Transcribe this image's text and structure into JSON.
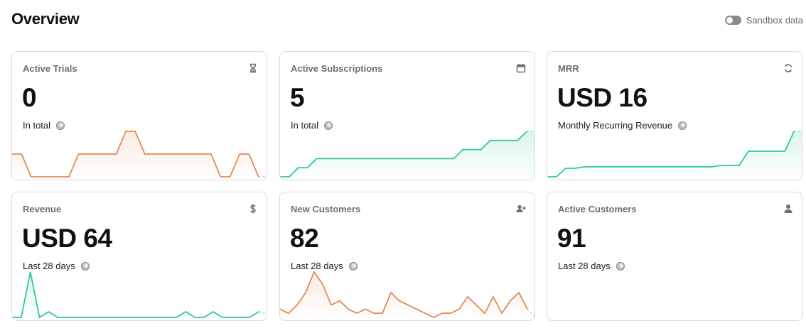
{
  "page": {
    "title": "Overview"
  },
  "sandbox": {
    "label": "Sandbox data",
    "enabled": false
  },
  "colors": {
    "orange": "#e08a5a",
    "green": "#2ecc87"
  },
  "cards": [
    {
      "title": "Active Trials",
      "icon": "hourglass-icon",
      "value": "0",
      "subtitle": "In total",
      "trend_color": "orange",
      "trend": [
        1,
        1,
        0,
        0,
        0,
        0,
        0,
        1,
        1,
        1,
        1,
        1,
        2,
        2,
        1,
        1,
        1,
        1,
        1,
        1,
        1,
        1,
        0,
        0,
        1,
        1,
        0,
        0
      ]
    },
    {
      "title": "Active Subscriptions",
      "icon": "calendar-icon",
      "value": "5",
      "subtitle": "In total",
      "trend_color": "green",
      "trend": [
        0,
        0,
        1,
        1,
        2,
        2,
        2,
        2,
        2,
        2,
        2,
        2,
        2,
        2,
        2,
        2,
        2,
        2,
        2,
        2,
        3,
        3,
        3,
        4,
        4,
        4,
        4,
        5,
        5
      ]
    },
    {
      "title": "MRR",
      "icon": "refresh-icon",
      "value": "USD 16",
      "subtitle": "Monthly Recurring Revenue",
      "trend_color": "green",
      "trend": [
        0,
        0,
        3,
        3,
        3.5,
        3.5,
        3.5,
        3.5,
        3.5,
        3.5,
        3.5,
        3.5,
        3.5,
        3.5,
        3.5,
        3.5,
        3.5,
        3.5,
        3.5,
        4,
        4,
        4,
        9,
        9,
        9,
        9,
        9,
        16,
        16
      ]
    },
    {
      "title": "Revenue",
      "icon": "dollar-icon",
      "value": "USD 64",
      "subtitle": "Last 28 days",
      "trend_color": "green",
      "trend": [
        0,
        0,
        16,
        0,
        2,
        0,
        0,
        0,
        0,
        0,
        0,
        0,
        0,
        0,
        0,
        0,
        0,
        0,
        0,
        2,
        0,
        0,
        2,
        0,
        0,
        0,
        0,
        2,
        1
      ]
    },
    {
      "title": "New Customers",
      "icon": "add-user-icon",
      "value": "82",
      "subtitle": "Last 28 days",
      "trend_color": "orange",
      "trend": [
        2,
        1,
        3,
        6,
        11,
        8,
        3,
        4,
        2,
        1,
        2,
        1,
        1,
        6,
        4,
        3,
        2,
        1,
        0,
        1,
        1,
        2,
        5,
        3,
        1,
        5,
        1,
        4,
        6,
        2,
        0
      ]
    },
    {
      "title": "Active Customers",
      "icon": "user-icon",
      "value": "91",
      "subtitle": "Last 28 days",
      "trend_color": "none",
      "trend": []
    }
  ]
}
